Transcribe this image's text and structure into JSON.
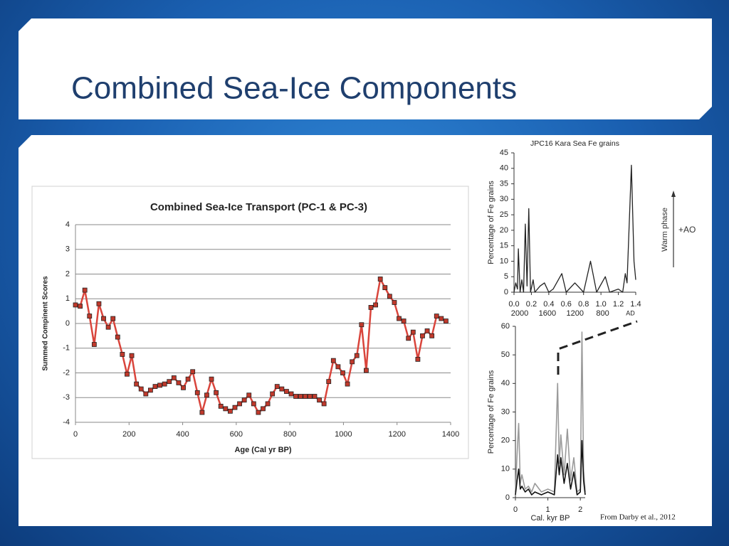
{
  "slide_title": "Combined Sea-Ice Components",
  "credit": "From Darby et al., 2012",
  "side_annotations": {
    "warm": "Warm phase",
    "ao": "+AO"
  },
  "chart_data": [
    {
      "type": "line",
      "title": "Combined Sea-Ice Transport (PC-1 & PC-3)",
      "x_label": "Age (Cal yr BP)",
      "y_label": "Summed Compinent Scores",
      "color": "#d9453c",
      "marker_color": "#c0392b",
      "markers": true,
      "grid": true,
      "xlim": [
        0,
        1400
      ],
      "ylim": [
        -4,
        4
      ],
      "xticks": [
        0,
        200,
        400,
        600,
        800,
        1000,
        1200,
        1400
      ],
      "yticks": [
        -4,
        -3,
        -2,
        -1,
        0,
        1,
        2,
        3,
        4
      ],
      "x": [
        0,
        17.5,
        35,
        52.5,
        70,
        87.5,
        105,
        122.5,
        140,
        157.5,
        175,
        192.5,
        210,
        227.5,
        245,
        262.5,
        280,
        297.5,
        315,
        332.5,
        350,
        367.5,
        385,
        402.5,
        420,
        437.5,
        455,
        472.5,
        490,
        507.5,
        525,
        542.5,
        560,
        577.5,
        595,
        612.5,
        630,
        647.5,
        665,
        682.5,
        700,
        717.5,
        735,
        752.5,
        770,
        787.5,
        805,
        822.5,
        840,
        857.5,
        875,
        892.5,
        910,
        927.5,
        945,
        962.5,
        980,
        997.5,
        1015,
        1032.5,
        1050,
        1067.5,
        1085,
        1102.5,
        1120,
        1137.5,
        1155,
        1172.5,
        1190,
        1207.5,
        1225,
        1242.5,
        1260,
        1277.5,
        1295,
        1312.5,
        1330,
        1347.5,
        1365,
        1382.5
      ],
      "values": [
        0.75,
        0.7,
        1.35,
        0.3,
        -0.85,
        0.8,
        0.2,
        -0.15,
        0.2,
        -0.55,
        -1.25,
        -2.05,
        -1.3,
        -2.45,
        -2.65,
        -2.85,
        -2.7,
        -2.55,
        -2.5,
        -2.45,
        -2.35,
        -2.2,
        -2.4,
        -2.6,
        -2.25,
        -1.95,
        -2.8,
        -3.6,
        -2.9,
        -2.25,
        -2.8,
        -3.35,
        -3.45,
        -3.55,
        -3.4,
        -3.25,
        -3.1,
        -2.9,
        -3.25,
        -3.6,
        -3.45,
        -3.25,
        -2.85,
        -2.55,
        -2.65,
        -2.75,
        -2.85,
        -2.95,
        -2.95,
        -2.95,
        -2.95,
        -2.95,
        -3.1,
        -3.25,
        -2.35,
        -1.5,
        -1.75,
        -2.0,
        -2.45,
        -1.55,
        -1.3,
        -0.05,
        -1.9,
        0.65,
        0.75,
        1.8,
        1.45,
        1.1,
        0.85,
        0.2,
        0.1,
        -0.6,
        -0.35,
        -1.45,
        -0.5,
        -0.3,
        -0.5,
        0.3,
        0.2,
        0.1
      ]
    },
    {
      "type": "line",
      "title": "JPC16 Kara Sea Fe grains",
      "y_label": "Percentage of Fe grains",
      "secondary_x_labels": [
        "2000",
        "1600",
        "1200",
        "800",
        "AD"
      ],
      "xlim": [
        0,
        1.4
      ],
      "ylim": [
        0,
        45
      ],
      "xticks": [
        {
          "value": 0,
          "label": "0.0"
        },
        0.2,
        0.4,
        0.6,
        0.8,
        {
          "value": 1,
          "label": "1.0"
        },
        1.2,
        1.4
      ],
      "yticks": [
        0,
        5,
        10,
        15,
        20,
        25,
        30,
        35,
        40,
        45
      ],
      "x": [
        0,
        0.02,
        0.04,
        0.05,
        0.07,
        0.09,
        0.11,
        0.13,
        0.15,
        0.17,
        0.19,
        0.22,
        0.24,
        0.3,
        0.35,
        0.4,
        0.45,
        0.55,
        0.6,
        0.7,
        0.8,
        0.88,
        0.95,
        1.05,
        1.1,
        1.2,
        1.25,
        1.28,
        1.3,
        1.35,
        1.38,
        1.4
      ],
      "series": [
        {
          "color": "#222222",
          "values": [
            0,
            3,
            1,
            14,
            0,
            4,
            0,
            22,
            2,
            27,
            0,
            4,
            0,
            2,
            3,
            0,
            1,
            6,
            0,
            3,
            0,
            10,
            0,
            5,
            0,
            1,
            0,
            6,
            3,
            41,
            10,
            4
          ]
        }
      ]
    },
    {
      "type": "line",
      "x_label": "Cal. kyr BP",
      "y_label": "Percentage of Fe grains",
      "xlim": [
        0,
        2.15
      ],
      "ylim": [
        0,
        60
      ],
      "xticks": [
        0,
        1,
        2
      ],
      "yticks": [
        0,
        10,
        20,
        30,
        40,
        50,
        60
      ],
      "x": [
        0,
        0.05,
        0.1,
        0.15,
        0.2,
        0.3,
        0.4,
        0.5,
        0.6,
        0.8,
        1.0,
        1.2,
        1.3,
        1.35,
        1.4,
        1.5,
        1.6,
        1.7,
        1.8,
        1.9,
        2.0,
        2.05,
        2.1,
        2.15
      ],
      "series": [
        {
          "color": "#9a9a9a",
          "values": [
            2,
            15,
            26,
            5,
            8,
            3,
            4,
            2,
            5,
            2,
            3,
            2,
            40,
            12,
            22,
            8,
            24,
            6,
            14,
            2,
            3,
            58,
            10,
            2
          ]
        },
        {
          "color": "#111111",
          "values": [
            1,
            6,
            10,
            3,
            4,
            2,
            3,
            1,
            2,
            1,
            2,
            1,
            15,
            8,
            14,
            5,
            12,
            3,
            9,
            1,
            2,
            20,
            6,
            1
          ]
        }
      ]
    }
  ]
}
